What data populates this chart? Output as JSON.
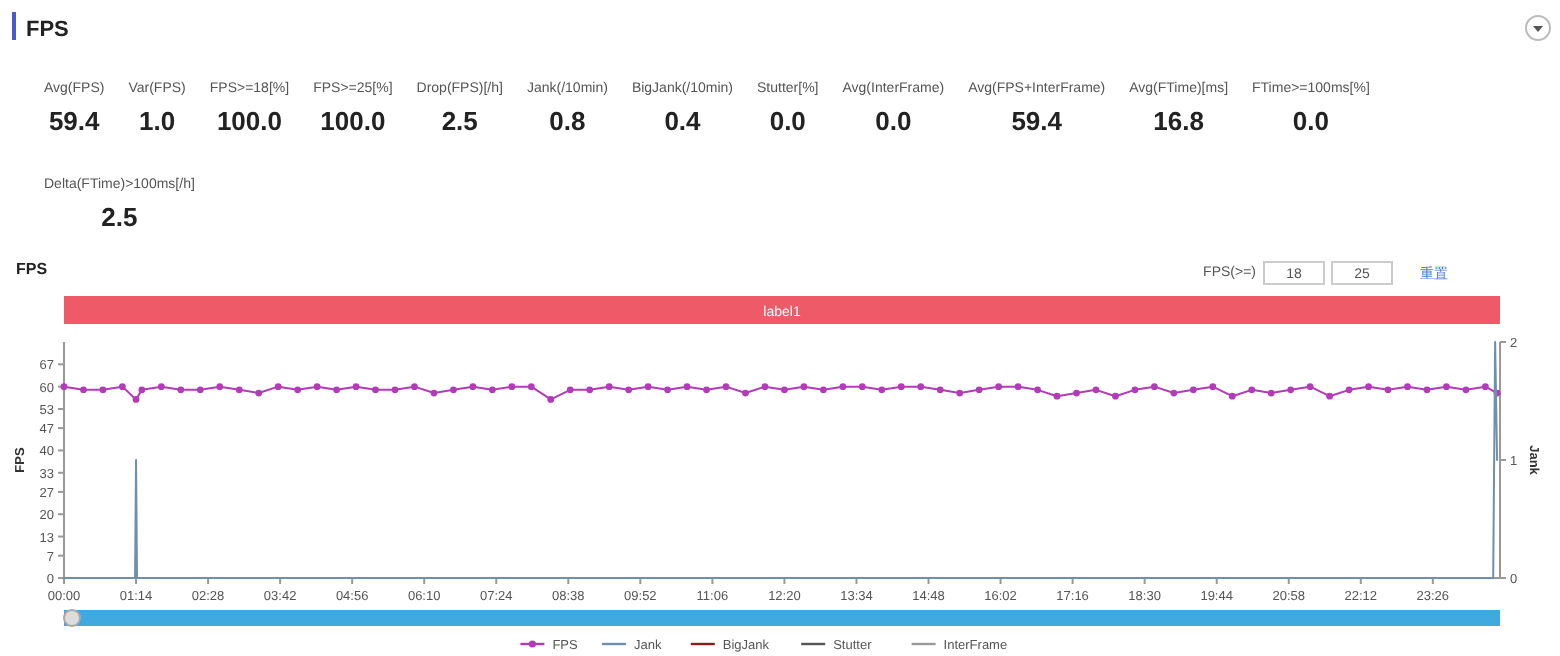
{
  "chart_data": [
    {
      "type": "other",
      "title": "FPS",
      "categories": [
        "Avg(FPS)",
        "Var(FPS)",
        "FPS>=18[%]",
        "FPS>=25[%]",
        "Drop(FPS)[/h]",
        "Jank(/10min)",
        "BigJank(/10min)",
        "Stutter[%]",
        "Avg(InterFrame)",
        "Avg(FPS+InterFrame)",
        "Avg(FTime)[ms]",
        "FTime>=100ms[%]",
        "Delta(FTime)>100ms[/h]"
      ],
      "value_labels": [
        "59.4",
        "1.0",
        "100.0",
        "100.0",
        "2.5",
        "0.8",
        "0.4",
        "0.0",
        "0.0",
        "59.4",
        "16.8",
        "0.0",
        "2.5"
      ]
    },
    {
      "type": "line",
      "title": "FPS",
      "ylabel": "FPS",
      "y2label": "Jank",
      "annotations": [
        "label1",
        "FPS(>=)",
        "18",
        "25",
        "重置"
      ],
      "xlim": [
        0,
        1475
      ],
      "ylim": [
        0,
        74
      ],
      "y2lim": [
        0,
        2
      ],
      "xticks": [
        {
          "value": 0,
          "label": "00:00"
        },
        {
          "value": 74,
          "label": "01:14"
        },
        {
          "value": 148,
          "label": "02:28"
        },
        {
          "value": 222,
          "label": "03:42"
        },
        {
          "value": 296,
          "label": "04:56"
        },
        {
          "value": 370,
          "label": "06:10"
        },
        {
          "value": 444,
          "label": "07:24"
        },
        {
          "value": 518,
          "label": "08:38"
        },
        {
          "value": 592,
          "label": "09:52"
        },
        {
          "value": 666,
          "label": "11:06"
        },
        {
          "value": 740,
          "label": "12:20"
        },
        {
          "value": 814,
          "label": "13:34"
        },
        {
          "value": 888,
          "label": "14:48"
        },
        {
          "value": 962,
          "label": "16:02"
        },
        {
          "value": 1036,
          "label": "17:16"
        },
        {
          "value": 1110,
          "label": "18:30"
        },
        {
          "value": 1184,
          "label": "19:44"
        },
        {
          "value": 1258,
          "label": "20:58"
        },
        {
          "value": 1332,
          "label": "22:12"
        },
        {
          "value": 1406,
          "label": "23:26"
        }
      ],
      "yticks": [
        0,
        7,
        13,
        20,
        27,
        33,
        40,
        47,
        53,
        60,
        67
      ],
      "y2ticks": [
        0,
        1,
        2
      ],
      "legend": "bottom",
      "grid": false,
      "series": [
        {
          "name": "FPS",
          "color": "#b23cb8",
          "x": [
            0,
            20,
            40,
            60,
            74,
            80,
            100,
            120,
            140,
            160,
            180,
            200,
            220,
            240,
            260,
            280,
            300,
            320,
            340,
            360,
            380,
            400,
            420,
            440,
            460,
            480,
            500,
            520,
            540,
            560,
            580,
            600,
            620,
            640,
            660,
            680,
            700,
            720,
            740,
            760,
            780,
            800,
            820,
            840,
            860,
            880,
            900,
            920,
            940,
            960,
            980,
            1000,
            1020,
            1040,
            1060,
            1080,
            1100,
            1120,
            1140,
            1160,
            1180,
            1200,
            1220,
            1240,
            1260,
            1280,
            1300,
            1320,
            1340,
            1360,
            1380,
            1400,
            1420,
            1440,
            1460,
            1472
          ],
          "marker": "circle",
          "values": [
            60,
            59,
            59,
            60,
            56,
            59,
            60,
            59,
            59,
            60,
            59,
            58,
            60,
            59,
            60,
            59,
            60,
            59,
            59,
            60,
            58,
            59,
            60,
            59,
            60,
            60,
            56,
            59,
            59,
            60,
            59,
            60,
            59,
            60,
            59,
            60,
            58,
            60,
            59,
            60,
            59,
            60,
            60,
            59,
            60,
            60,
            59,
            58,
            59,
            60,
            60,
            59,
            57,
            58,
            59,
            57,
            59,
            60,
            58,
            59,
            60,
            57,
            59,
            58,
            59,
            60,
            57,
            59,
            60,
            59,
            60,
            59,
            60,
            59,
            60,
            58
          ]
        },
        {
          "name": "Jank",
          "color": "#6f8fb0",
          "axis": "y2",
          "x": [
            0,
            73,
            74,
            75,
            1468,
            1470,
            1472
          ],
          "values": [
            0,
            0,
            1,
            0,
            0,
            2,
            1
          ]
        },
        {
          "name": "BigJank",
          "color": "#8b1c1c"
        },
        {
          "name": "Stutter",
          "color": "#555555"
        },
        {
          "name": "InterFrame",
          "color": "#999999"
        }
      ]
    }
  ]
}
